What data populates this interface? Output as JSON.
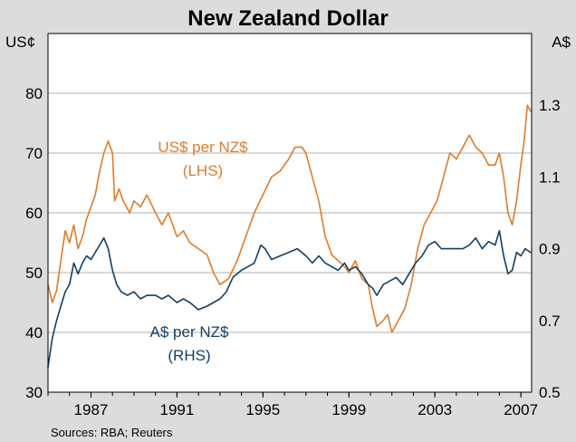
{
  "chart_data": {
    "type": "line",
    "title": "New Zealand Dollar",
    "source": "Sources: RBA; Reuters",
    "left_axis": {
      "unit": "US¢",
      "range": [
        30,
        90
      ],
      "ticks": [
        30,
        40,
        50,
        60,
        70,
        80
      ]
    },
    "right_axis": {
      "unit": "A$",
      "range": [
        0.5,
        1.5
      ],
      "ticks": [
        0.5,
        0.7,
        0.9,
        1.1,
        1.3
      ],
      "tick_labels": [
        "0.5",
        "0.7",
        "0.9",
        "1.1",
        "1.3"
      ]
    },
    "x_axis": {
      "range": [
        1985.0,
        2007.5
      ],
      "ticks": [
        1987,
        1991,
        1995,
        1999,
        2003,
        2007
      ]
    },
    "grid": true,
    "series": [
      {
        "name": "US$ per NZ$",
        "axis_note": "(LHS)",
        "axis": "left",
        "color": "#e07b2a",
        "x": [
          1985.0,
          1985.2,
          1985.4,
          1985.6,
          1985.8,
          1986.0,
          1986.2,
          1986.4,
          1986.6,
          1986.8,
          1987.0,
          1987.2,
          1987.4,
          1987.6,
          1987.8,
          1988.0,
          1988.1,
          1988.3,
          1988.5,
          1988.8,
          1989.0,
          1989.3,
          1989.6,
          1990.0,
          1990.3,
          1990.6,
          1991.0,
          1991.3,
          1991.6,
          1992.0,
          1992.4,
          1992.7,
          1993.0,
          1993.4,
          1993.8,
          1994.2,
          1994.6,
          1995.0,
          1995.4,
          1995.8,
          1996.2,
          1996.5,
          1996.8,
          1997.0,
          1997.3,
          1997.6,
          1997.9,
          1998.2,
          1998.5,
          1998.8,
          1999.0,
          1999.3,
          1999.6,
          1999.9,
          2000.1,
          2000.3,
          2000.6,
          2000.8,
          2001.0,
          2001.3,
          2001.6,
          2001.9,
          2002.2,
          2002.5,
          2002.8,
          2003.1,
          2003.4,
          2003.7,
          2004.0,
          2004.3,
          2004.6,
          2004.9,
          2005.2,
          2005.5,
          2005.8,
          2006.0,
          2006.2,
          2006.4,
          2006.6,
          2006.8,
          2007.0,
          2007.15,
          2007.3,
          2007.45
        ],
        "values": [
          48,
          45,
          47,
          52,
          57,
          55,
          58,
          54,
          56,
          59,
          61,
          63,
          67,
          70,
          72,
          70,
          62,
          64,
          62,
          60,
          62,
          61,
          63,
          60,
          58,
          60,
          56,
          57,
          55,
          54,
          53,
          50,
          48,
          49,
          52,
          56,
          60,
          63,
          66,
          67,
          69,
          71,
          71,
          70,
          66,
          62,
          56,
          53,
          52,
          51,
          50,
          52,
          49,
          48,
          44,
          41,
          42,
          43,
          40,
          42,
          44,
          48,
          54,
          58,
          60,
          62,
          66,
          70,
          69,
          71,
          73,
          71,
          70,
          68,
          68,
          70,
          66,
          60,
          58,
          62,
          68,
          72,
          78,
          77
        ]
      },
      {
        "name": "A$ per NZ$",
        "axis_note": "(RHS)",
        "axis": "right",
        "color": "#123f63",
        "x": [
          1985.0,
          1985.2,
          1985.4,
          1985.6,
          1985.8,
          1986.0,
          1986.2,
          1986.4,
          1986.6,
          1986.8,
          1987.0,
          1987.2,
          1987.4,
          1987.6,
          1987.8,
          1988.0,
          1988.2,
          1988.4,
          1988.7,
          1989.0,
          1989.3,
          1989.6,
          1990.0,
          1990.3,
          1990.6,
          1991.0,
          1991.3,
          1991.6,
          1992.0,
          1992.4,
          1992.7,
          1993.0,
          1993.3,
          1993.6,
          1994.0,
          1994.3,
          1994.6,
          1994.9,
          1995.1,
          1995.4,
          1995.8,
          1996.2,
          1996.6,
          1997.0,
          1997.3,
          1997.6,
          1997.9,
          1998.2,
          1998.5,
          1998.8,
          1999.0,
          1999.3,
          1999.6,
          1999.9,
          2000.1,
          2000.3,
          2000.6,
          2000.9,
          2001.2,
          2001.5,
          2001.8,
          2002.1,
          2002.4,
          2002.7,
          2003.0,
          2003.3,
          2003.6,
          2004.0,
          2004.3,
          2004.6,
          2004.9,
          2005.2,
          2005.5,
          2005.8,
          2006.0,
          2006.2,
          2006.4,
          2006.6,
          2006.8,
          2007.0,
          2007.2,
          2007.45
        ],
        "values": [
          0.57,
          0.65,
          0.7,
          0.74,
          0.78,
          0.8,
          0.86,
          0.83,
          0.86,
          0.88,
          0.87,
          0.89,
          0.91,
          0.93,
          0.9,
          0.84,
          0.8,
          0.78,
          0.77,
          0.78,
          0.76,
          0.77,
          0.77,
          0.76,
          0.77,
          0.75,
          0.76,
          0.75,
          0.73,
          0.74,
          0.75,
          0.76,
          0.78,
          0.82,
          0.84,
          0.85,
          0.86,
          0.91,
          0.9,
          0.87,
          0.88,
          0.89,
          0.9,
          0.88,
          0.86,
          0.88,
          0.86,
          0.85,
          0.84,
          0.86,
          0.84,
          0.85,
          0.83,
          0.8,
          0.79,
          0.77,
          0.8,
          0.81,
          0.82,
          0.8,
          0.83,
          0.86,
          0.88,
          0.91,
          0.92,
          0.9,
          0.9,
          0.9,
          0.9,
          0.91,
          0.93,
          0.9,
          0.92,
          0.91,
          0.95,
          0.88,
          0.83,
          0.84,
          0.89,
          0.88,
          0.9,
          0.89
        ]
      }
    ]
  }
}
